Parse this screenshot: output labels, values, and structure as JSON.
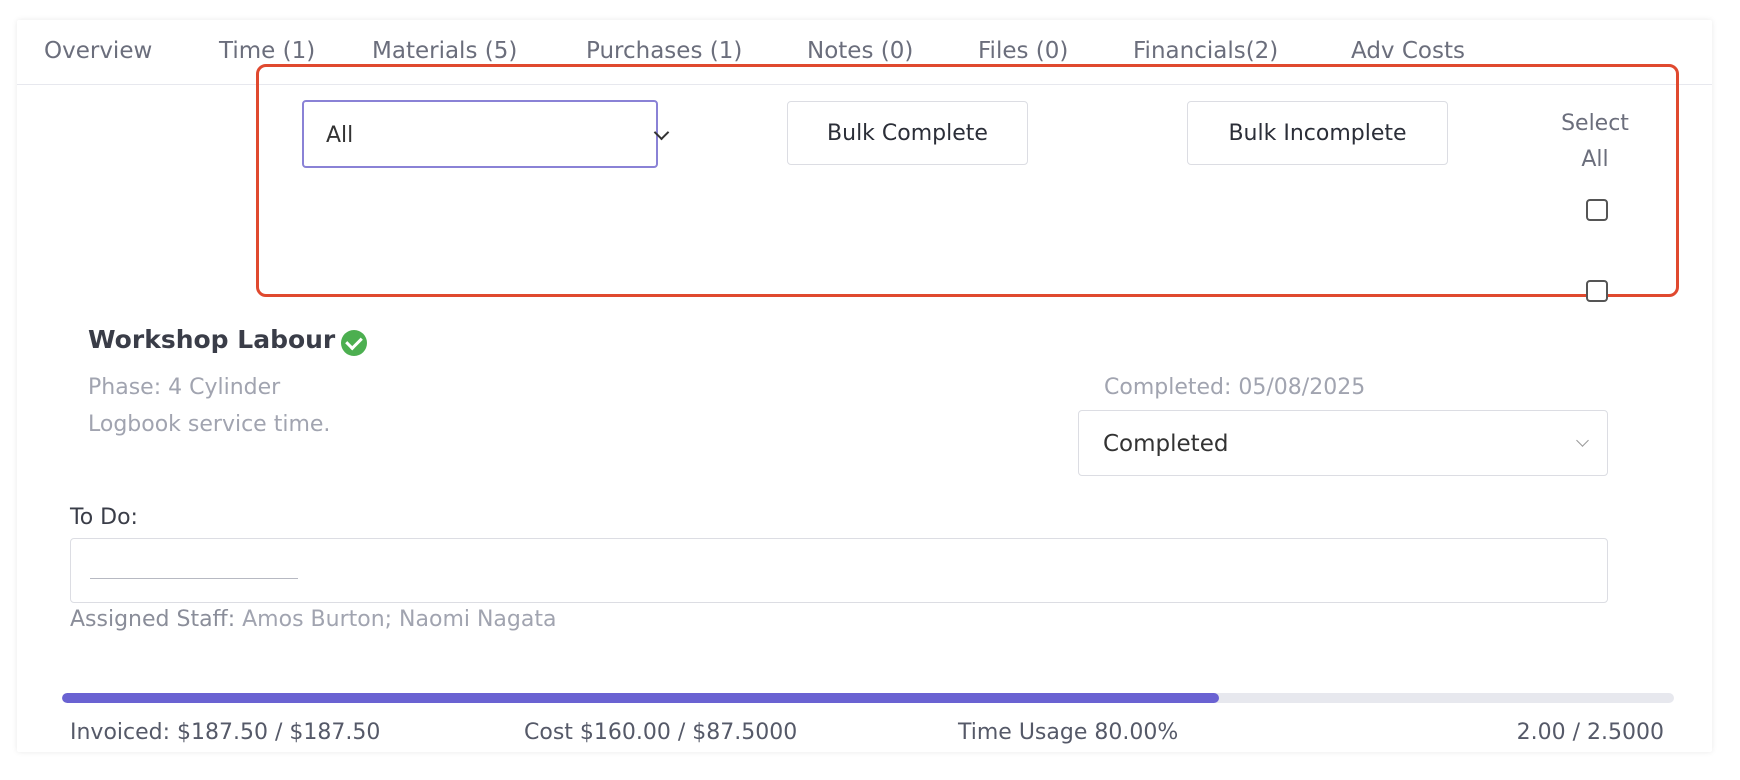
{
  "tabs": [
    {
      "label": "Overview"
    },
    {
      "label": "Time (1)"
    },
    {
      "label": "Materials (5)"
    },
    {
      "label": "Purchases (1)"
    },
    {
      "label": "Notes (0)"
    },
    {
      "label": "Files (0)"
    },
    {
      "label": "Financials(2)"
    },
    {
      "label": "Adv Costs"
    }
  ],
  "toolbar": {
    "filter_value": "All",
    "bulk_complete_label": "Bulk Complete",
    "bulk_incomplete_label": "Bulk Incomplete",
    "select_all_line1": "Select",
    "select_all_line2": "All"
  },
  "item": {
    "title": "Workshop Labour",
    "phase": "Phase: 4 Cylinder",
    "description": "Logbook service time.",
    "completed_date": "Completed: 05/08/2025",
    "status_value": "Completed",
    "todo_label": "To Do:",
    "assigned_label": "Assigned Staff:",
    "assigned_names": " Amos Burton; Naomi Nagata",
    "progress_fraction": 0.718
  },
  "stats": {
    "invoiced": "Invoiced: $187.50 / $187.50",
    "cost": "Cost $160.00 / $87.5000",
    "time_usage": "Time Usage 80.00%",
    "hours": "2.00 / 2.5000"
  },
  "colors": {
    "accent": "#6a62d2",
    "highlight_border": "#e0492f",
    "success": "#4caf50"
  }
}
